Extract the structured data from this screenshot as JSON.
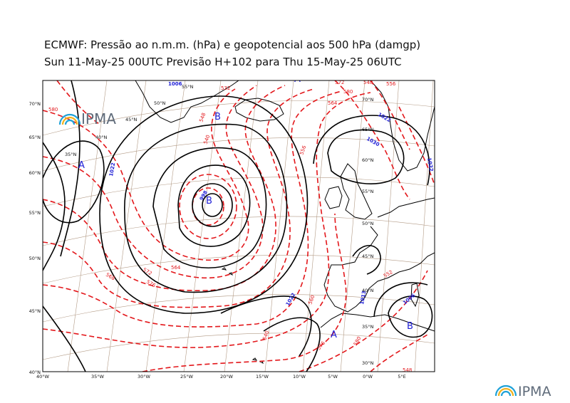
{
  "title_line1": "ECMWF:  Pressão ao n.m.m. (hPa) e geopotencial aos 500 hPa (damgp)",
  "title_line2": "Sun 11-May-25 00UTC Previsão H+102 para Thu 15-May-25 06UTC",
  "logo": {
    "text": "IPMA"
  },
  "axes": {
    "bottom_labels": [
      "40°W",
      "35°W",
      "30°W",
      "25°W",
      "20°W",
      "15°W",
      "10°W",
      "5°W",
      "0°W",
      "5°E"
    ],
    "left_labels": [
      "70°N",
      "65°N",
      "60°N",
      "55°N",
      "50°N",
      "45°N",
      "40°N"
    ]
  },
  "grid_labels": [
    "55°N",
    "50°N",
    "45°N",
    "40°N",
    "35°N",
    "70°N",
    "65°N",
    "60°N",
    "55°N",
    "50°N",
    "45°N",
    "40°N",
    "35°N",
    "30°N"
  ],
  "pressure_labels": [
    "1006",
    "1022",
    "998",
    "1022",
    "1030",
    "1022",
    "1013",
    "1006",
    "1022"
  ],
  "geopotential_labels": [
    "580",
    "548",
    "540",
    "556",
    "564",
    "572",
    "580",
    "532",
    "548",
    "556",
    "564",
    "572",
    "576",
    "568",
    "560",
    "540",
    "576",
    "580",
    "552",
    "548"
  ],
  "pressure_centres": [
    "A",
    "B",
    "B",
    "A",
    "A",
    "B"
  ],
  "colors": {
    "isobar": "#000000",
    "geopotential": "#e3171b",
    "centre": "#1d1dd6",
    "graticule": "#b39b86"
  }
}
